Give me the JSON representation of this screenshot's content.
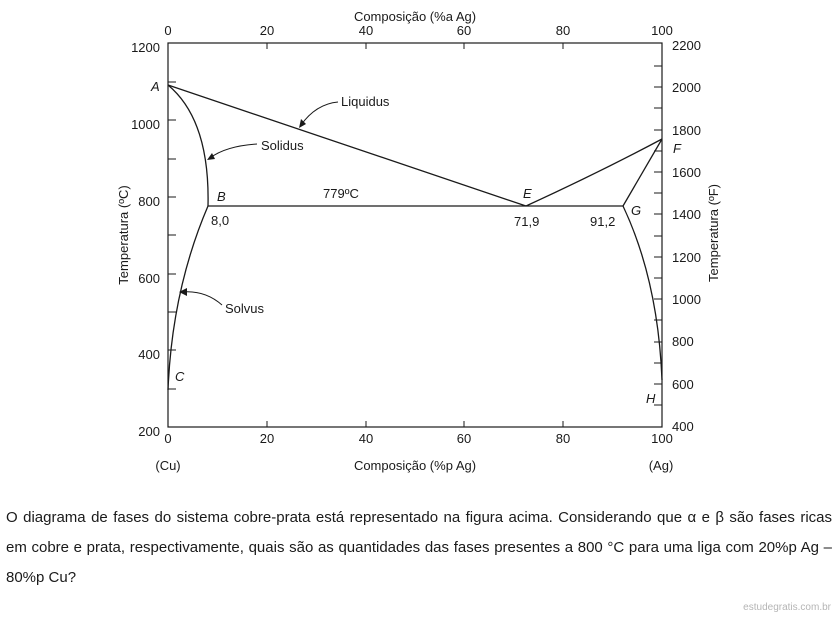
{
  "diagram": {
    "top_axis_label": "Composição (%a Ag)",
    "bottom_axis_label": "Composição (%p Ag)",
    "left_axis_label": "Temperatura (ºC)",
    "right_axis_label": "Temperatura (ºF)",
    "top_ticks": [
      "0",
      "20",
      "40",
      "60",
      "80",
      "100"
    ],
    "bottom_ticks": [
      "0",
      "20",
      "40",
      "60",
      "80",
      "100"
    ],
    "left_ticks": [
      "1200",
      "1000",
      "800",
      "600",
      "400",
      "200"
    ],
    "right_ticks": [
      "2200",
      "2000",
      "1800",
      "1600",
      "1400",
      "1200",
      "1000",
      "800",
      "600",
      "400"
    ],
    "left_end_label": "(Cu)",
    "right_end_label": "(Ag)",
    "point_A": "A",
    "point_B": "B",
    "point_C": "C",
    "point_E": "E",
    "point_F": "F",
    "point_G": "G",
    "point_H": "H",
    "value_B": "8,0",
    "value_E": "71,9",
    "value_G": "91,2",
    "eutectic_temp": "779ºC",
    "liquidus_label": "Liquidus",
    "solidus_label": "Solidus",
    "solvus_label": "Solvus"
  },
  "question": {
    "text": "O diagrama de fases do sistema cobre-prata está representado na figura acima. Considerando que α e β são fases ricas em cobre e prata, respectivamente, quais são as quantidades das fases presentes a 800 °C para uma liga com 20%p Ag – 80%p Cu?"
  },
  "watermark": "estudegratis.com.br"
}
